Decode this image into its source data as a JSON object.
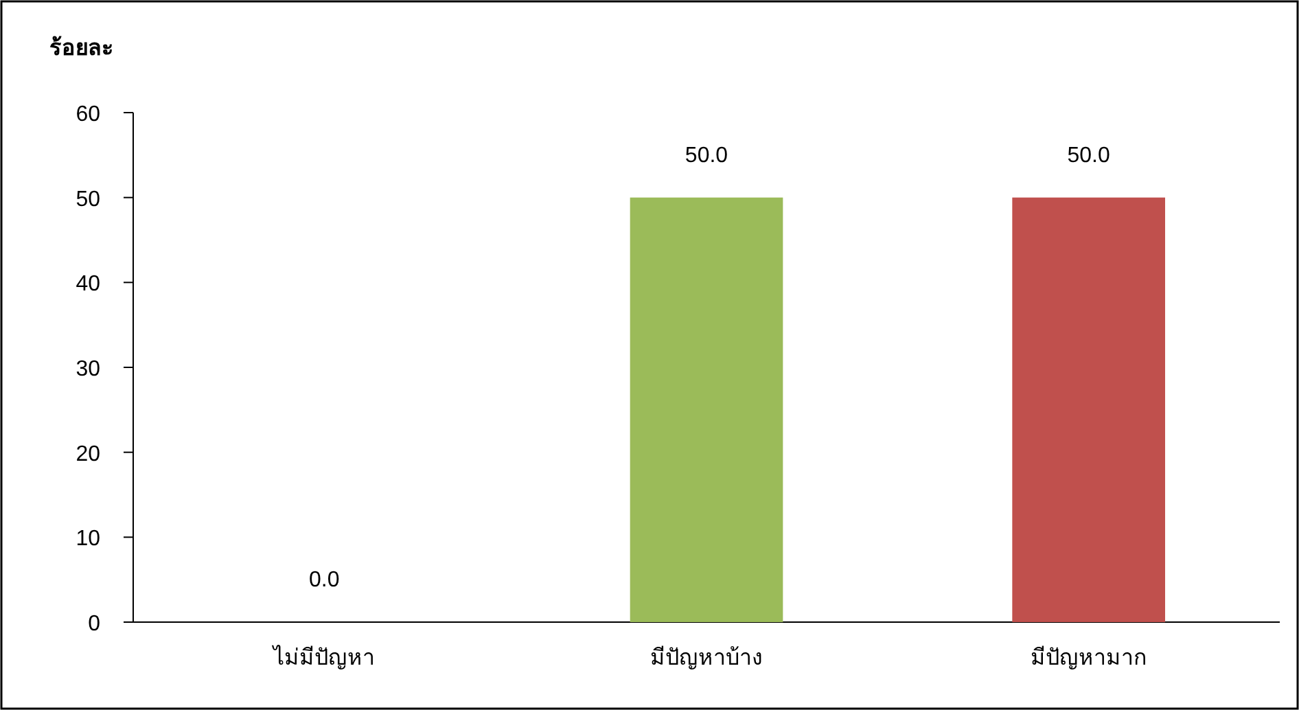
{
  "chart_data": {
    "type": "bar",
    "ylabel": "ร้อยละ",
    "categories": [
      "ไม่มีปัญหา",
      "มีปัญหาบ้าง",
      "มีปัญหามาก"
    ],
    "values": [
      0,
      50,
      50
    ],
    "colors": [
      "#4f81bd",
      "#9bbb59",
      "#c0504d"
    ],
    "value_labels": [
      "0.0",
      "50.0",
      "50.0"
    ],
    "ylim": [
      0,
      60
    ],
    "yticks": [
      0,
      10,
      20,
      30,
      40,
      50,
      60
    ],
    "grid": false
  }
}
